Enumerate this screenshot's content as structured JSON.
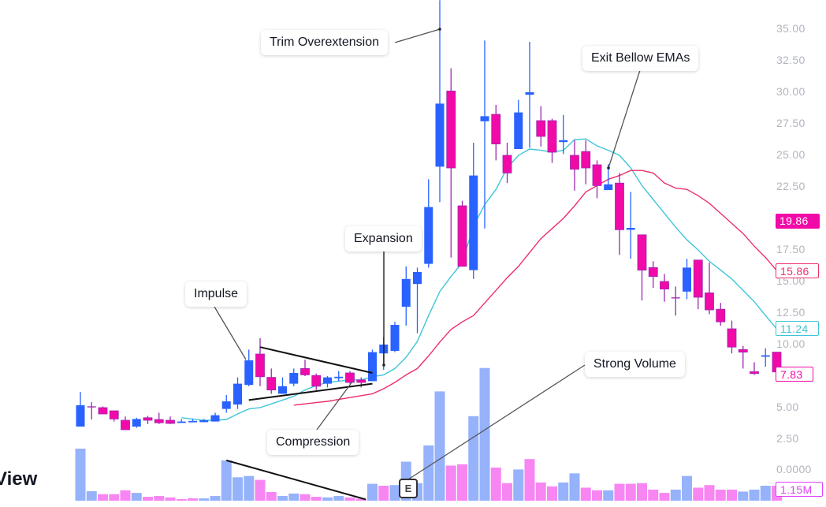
{
  "chart_data": {
    "type": "candlestick",
    "title": "",
    "price_axis": {
      "ticks": [
        "35.00",
        "32.50",
        "30.00",
        "27.50",
        "25.00",
        "22.50",
        "17.50",
        "15.00",
        "12.50",
        "10.00",
        "5.00",
        "2.50",
        "0.0000"
      ],
      "range": [
        0,
        35
      ]
    },
    "colors": {
      "up": "#2962ff",
      "down": "#f20aa8",
      "down_wick": "#9c27b0",
      "vol_up": "#95b2fb",
      "vol_down": "#f786f2",
      "ema_fast": "#3ec6d8",
      "ema_slow": "#ee2f68"
    },
    "candles_ohlc": [
      [
        3.5,
        6.25,
        3.5,
        5.19
      ],
      [
        5.06,
        5.44,
        4.06,
        5.06
      ],
      [
        5.0,
        5.1,
        4.5,
        4.5
      ],
      [
        4.75,
        4.75,
        3.9,
        4.1
      ],
      [
        4.0,
        4.3,
        3.25,
        3.25
      ],
      [
        3.5,
        4.2,
        3.4,
        4.1
      ],
      [
        4.2,
        4.35,
        3.7,
        4.0
      ],
      [
        4.06,
        4.6,
        3.7,
        3.8
      ],
      [
        4.0,
        4.3,
        3.7,
        3.75
      ],
      [
        3.85,
        4.1,
        3.8,
        3.9
      ],
      [
        3.9,
        4.1,
        3.85,
        3.95
      ],
      [
        3.85,
        4.1,
        3.85,
        4.0
      ],
      [
        3.9,
        4.6,
        3.9,
        4.4
      ],
      [
        4.9,
        6.0,
        4.6,
        5.5
      ],
      [
        5.25,
        7.4,
        4.9,
        6.9
      ],
      [
        6.8,
        9.6,
        6.7,
        8.75
      ],
      [
        9.25,
        10.5,
        6.7,
        7.45
      ],
      [
        7.4,
        8.1,
        6.1,
        6.4
      ],
      [
        6.1,
        7.4,
        6.1,
        6.7
      ],
      [
        6.9,
        8.1,
        6.7,
        7.75
      ],
      [
        8.1,
        8.8,
        7.5,
        7.6
      ],
      [
        7.55,
        7.7,
        6.4,
        6.7
      ],
      [
        6.9,
        7.5,
        6.6,
        7.4
      ],
      [
        7.4,
        7.9,
        7.1,
        7.45
      ],
      [
        7.75,
        7.9,
        6.9,
        7.0
      ],
      [
        7.2,
        7.4,
        6.6,
        7.0
      ],
      [
        7.1,
        9.6,
        7.1,
        9.4
      ],
      [
        9.3,
        10.6,
        8.0,
        10.0
      ],
      [
        9.5,
        11.8,
        9.4,
        11.56
      ],
      [
        13.0,
        16.2,
        11.5,
        15.2
      ],
      [
        14.8,
        16.1,
        10.9,
        15.75
      ],
      [
        16.4,
        23.1,
        16.1,
        20.9
      ],
      [
        24.1,
        37.3,
        21.3,
        29.1
      ],
      [
        30.1,
        31.9,
        16.9,
        24.0
      ],
      [
        21.0,
        21.4,
        16.2,
        16.2
      ],
      [
        15.9,
        26.0,
        15.2,
        23.4
      ],
      [
        27.7,
        34.1,
        19.2,
        28.1
      ],
      [
        28.25,
        29.0,
        24.6,
        25.9
      ],
      [
        25.0,
        26.0,
        22.8,
        23.6
      ],
      [
        25.5,
        29.4,
        25.5,
        28.4
      ],
      [
        29.8,
        34.0,
        25.6,
        30.0
      ],
      [
        27.75,
        28.9,
        25.7,
        26.5
      ],
      [
        27.75,
        27.9,
        24.4,
        25.25
      ],
      [
        26.05,
        28.2,
        25.1,
        26.2
      ],
      [
        25.0,
        26.2,
        22.2,
        23.9
      ],
      [
        25.3,
        26.2,
        22.7,
        24.0
      ],
      [
        24.25,
        24.6,
        21.6,
        22.6
      ],
      [
        22.25,
        24.3,
        22.25,
        22.7
      ],
      [
        22.8,
        23.6,
        17.1,
        19.1
      ],
      [
        19.1,
        22.1,
        16.8,
        19.25
      ],
      [
        18.7,
        18.7,
        13.5,
        15.9
      ],
      [
        16.1,
        16.6,
        14.5,
        15.4
      ],
      [
        15.0,
        15.6,
        13.4,
        14.4
      ],
      [
        13.7,
        14.6,
        12.3,
        13.7
      ],
      [
        14.2,
        16.8,
        13.6,
        16.1
      ],
      [
        16.7,
        16.7,
        12.8,
        13.75
      ],
      [
        14.1,
        16.5,
        12.4,
        12.75
      ],
      [
        12.8,
        13.3,
        11.5,
        11.8
      ],
      [
        11.25,
        11.9,
        9.3,
        9.8
      ],
      [
        9.6,
        9.9,
        8.1,
        9.4
      ],
      [
        7.85,
        8.6,
        7.6,
        7.7
      ],
      [
        9.1,
        9.7,
        8.25,
        9.15
      ],
      [
        9.4,
        9.4,
        7.83,
        7.83
      ]
    ],
    "volume_millions": [
      4.0,
      0.73,
      0.5,
      0.5,
      0.8,
      0.6,
      0.3,
      0.36,
      0.25,
      0.12,
      0.18,
      0.18,
      0.36,
      3.1,
      1.8,
      1.9,
      1.6,
      0.67,
      0.36,
      0.55,
      0.5,
      0.3,
      0.25,
      0.36,
      0.25,
      0.15,
      1.3,
      1.15,
      1.2,
      3.0,
      1.35,
      4.25,
      8.4,
      2.7,
      2.8,
      6.5,
      10.2,
      2.55,
      1.35,
      2.4,
      3.2,
      1.4,
      1.1,
      1.4,
      2.1,
      1.0,
      0.8,
      0.8,
      1.3,
      1.3,
      1.35,
      0.85,
      0.6,
      0.85,
      1.9,
      1.0,
      1.2,
      0.85,
      0.85,
      0.7,
      0.85,
      1.15,
      1.15
    ],
    "volume_direction": [
      "u",
      "u",
      "d",
      "d",
      "d",
      "u",
      "d",
      "d",
      "d",
      "d",
      "d",
      "u",
      "u",
      "u",
      "u",
      "u",
      "d",
      "d",
      "u",
      "u",
      "d",
      "d",
      "u",
      "u",
      "d",
      "d",
      "u",
      "d",
      "u",
      "u",
      "u",
      "u",
      "u",
      "d",
      "d",
      "u",
      "u",
      "d",
      "d",
      "u",
      "d",
      "d",
      "d",
      "u",
      "u",
      "d",
      "d",
      "u",
      "d",
      "d",
      "d",
      "d",
      "d",
      "u",
      "u",
      "d",
      "d",
      "d",
      "d",
      "u",
      "u",
      "u",
      "d"
    ],
    "ema_fast": {
      "start_bar": 10,
      "values": [
        4.2,
        4.1,
        4.0,
        4.0,
        4.06,
        4.5,
        4.9,
        5.0,
        5.3,
        5.6,
        5.9,
        6.4,
        6.75,
        7.0,
        7.1,
        7.2,
        7.2,
        7.45,
        7.6,
        8.1,
        9.0,
        10.25,
        12.3,
        14.2,
        15.4,
        16.5,
        19.4,
        21.1,
        22.3,
        24.0,
        25.0,
        25.5,
        25.4,
        25.25,
        25.4,
        26.25,
        26.3,
        25.75,
        25.4,
        25.0,
        24.0,
        22.6,
        21.5,
        20.4,
        19.3,
        18.3,
        17.5,
        16.6,
        15.9,
        15.2,
        14.3,
        13.4,
        12.3,
        11.24
      ]
    },
    "ema_slow": {
      "start_bar": 20,
      "values": [
        5.2,
        5.3,
        5.4,
        5.5,
        5.65,
        5.8,
        5.95,
        6.1,
        6.5,
        7.0,
        7.6,
        8.1,
        9.1,
        10.2,
        11.2,
        11.8,
        12.3,
        13.3,
        14.3,
        15.3,
        16.2,
        17.3,
        18.4,
        19.2,
        20.0,
        21.0,
        22.1,
        22.6,
        23.1,
        23.4,
        23.8,
        23.8,
        23.6,
        22.8,
        22.4,
        22.3,
        21.8,
        21.2,
        20.4,
        19.6,
        18.8,
        17.8,
        16.9,
        15.86
      ]
    },
    "trendlines": [
      {
        "from": [
          17,
          9.8
        ],
        "to": [
          27,
          7.75
        ],
        "pane": "price"
      },
      {
        "from": [
          16,
          5.6
        ],
        "to": [
          27,
          6.9
        ],
        "pane": "price"
      },
      {
        "from": [
          14,
          3.1
        ],
        "to": [
          26.4,
          0.1
        ],
        "pane": "volume"
      }
    ],
    "price_tags": [
      {
        "text": "19.86",
        "style": "filled",
        "color": "#f20aa8"
      },
      {
        "text": "15.86",
        "style": "outline",
        "color": "#ee2f68"
      },
      {
        "text": "11.24",
        "style": "outline",
        "color": "#3ec6d8"
      },
      {
        "text": "7.83",
        "style": "outline",
        "color": "#f20aa8"
      },
      {
        "text": "1.15M",
        "style": "outline",
        "color": "#e040fb"
      }
    ],
    "annotations": {
      "trim": "Trim Overextension",
      "exit": "Exit Bellow EMAs",
      "expansion": "Expansion",
      "impulse": "Impulse",
      "compression": "Compression",
      "strong_volume": "Strong Volume",
      "earnings_marker": "E"
    }
  },
  "logo": {
    "text": "View"
  }
}
